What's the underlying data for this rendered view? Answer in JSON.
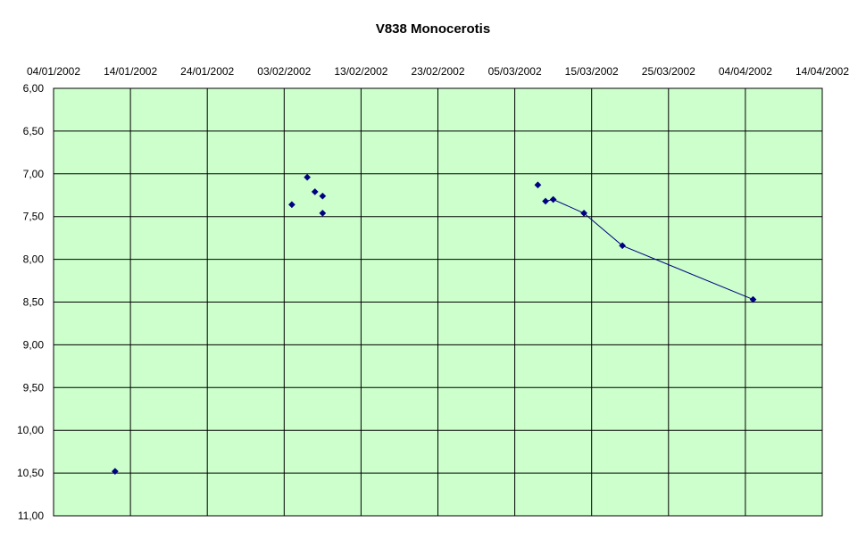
{
  "chart_data": {
    "type": "scatter",
    "title": "V838 Monocerotis",
    "xlabel": "",
    "ylabel": "",
    "x_axis": {
      "type": "date",
      "position": "top",
      "range": [
        "2002-01-04",
        "2002-04-14"
      ],
      "tick_step_days": 10,
      "tick_labels": [
        "04/01/2002",
        "14/01/2002",
        "24/01/2002",
        "03/02/2002",
        "13/02/2002",
        "23/02/2002",
        "05/03/2002",
        "15/03/2002",
        "25/03/2002",
        "04/04/2002",
        "14/04/2002"
      ]
    },
    "y_axis": {
      "reversed": true,
      "range": [
        6.0,
        11.0
      ],
      "tick_step": 0.5,
      "tick_labels": [
        "6,00",
        "6,50",
        "7,00",
        "7,50",
        "8,00",
        "8,50",
        "9,00",
        "9,50",
        "10,00",
        "10,50",
        "11,00"
      ]
    },
    "grid": true,
    "legend": "none",
    "colors": {
      "plot_bg": "#ccffcc",
      "marker": "#000080",
      "line": "#000080",
      "grid": "#000000"
    },
    "series": [
      {
        "connected": false,
        "points": [
          {
            "x": "2002-01-12",
            "y": 10.48
          },
          {
            "x": "2002-02-04",
            "y": 7.36
          },
          {
            "x": "2002-02-06",
            "y": 7.04
          },
          {
            "x": "2002-02-07",
            "y": 7.21
          },
          {
            "x": "2002-02-08",
            "y": 7.26
          },
          {
            "x": "2002-02-08",
            "y": 7.46
          },
          {
            "x": "2002-03-08",
            "y": 7.13
          }
        ]
      },
      {
        "connected": true,
        "points": [
          {
            "x": "2002-03-09",
            "y": 7.32
          },
          {
            "x": "2002-03-10",
            "y": 7.3
          },
          {
            "x": "2002-03-14",
            "y": 7.46
          },
          {
            "x": "2002-03-19",
            "y": 7.84
          },
          {
            "x": "2002-04-05",
            "y": 8.47
          }
        ]
      }
    ]
  }
}
